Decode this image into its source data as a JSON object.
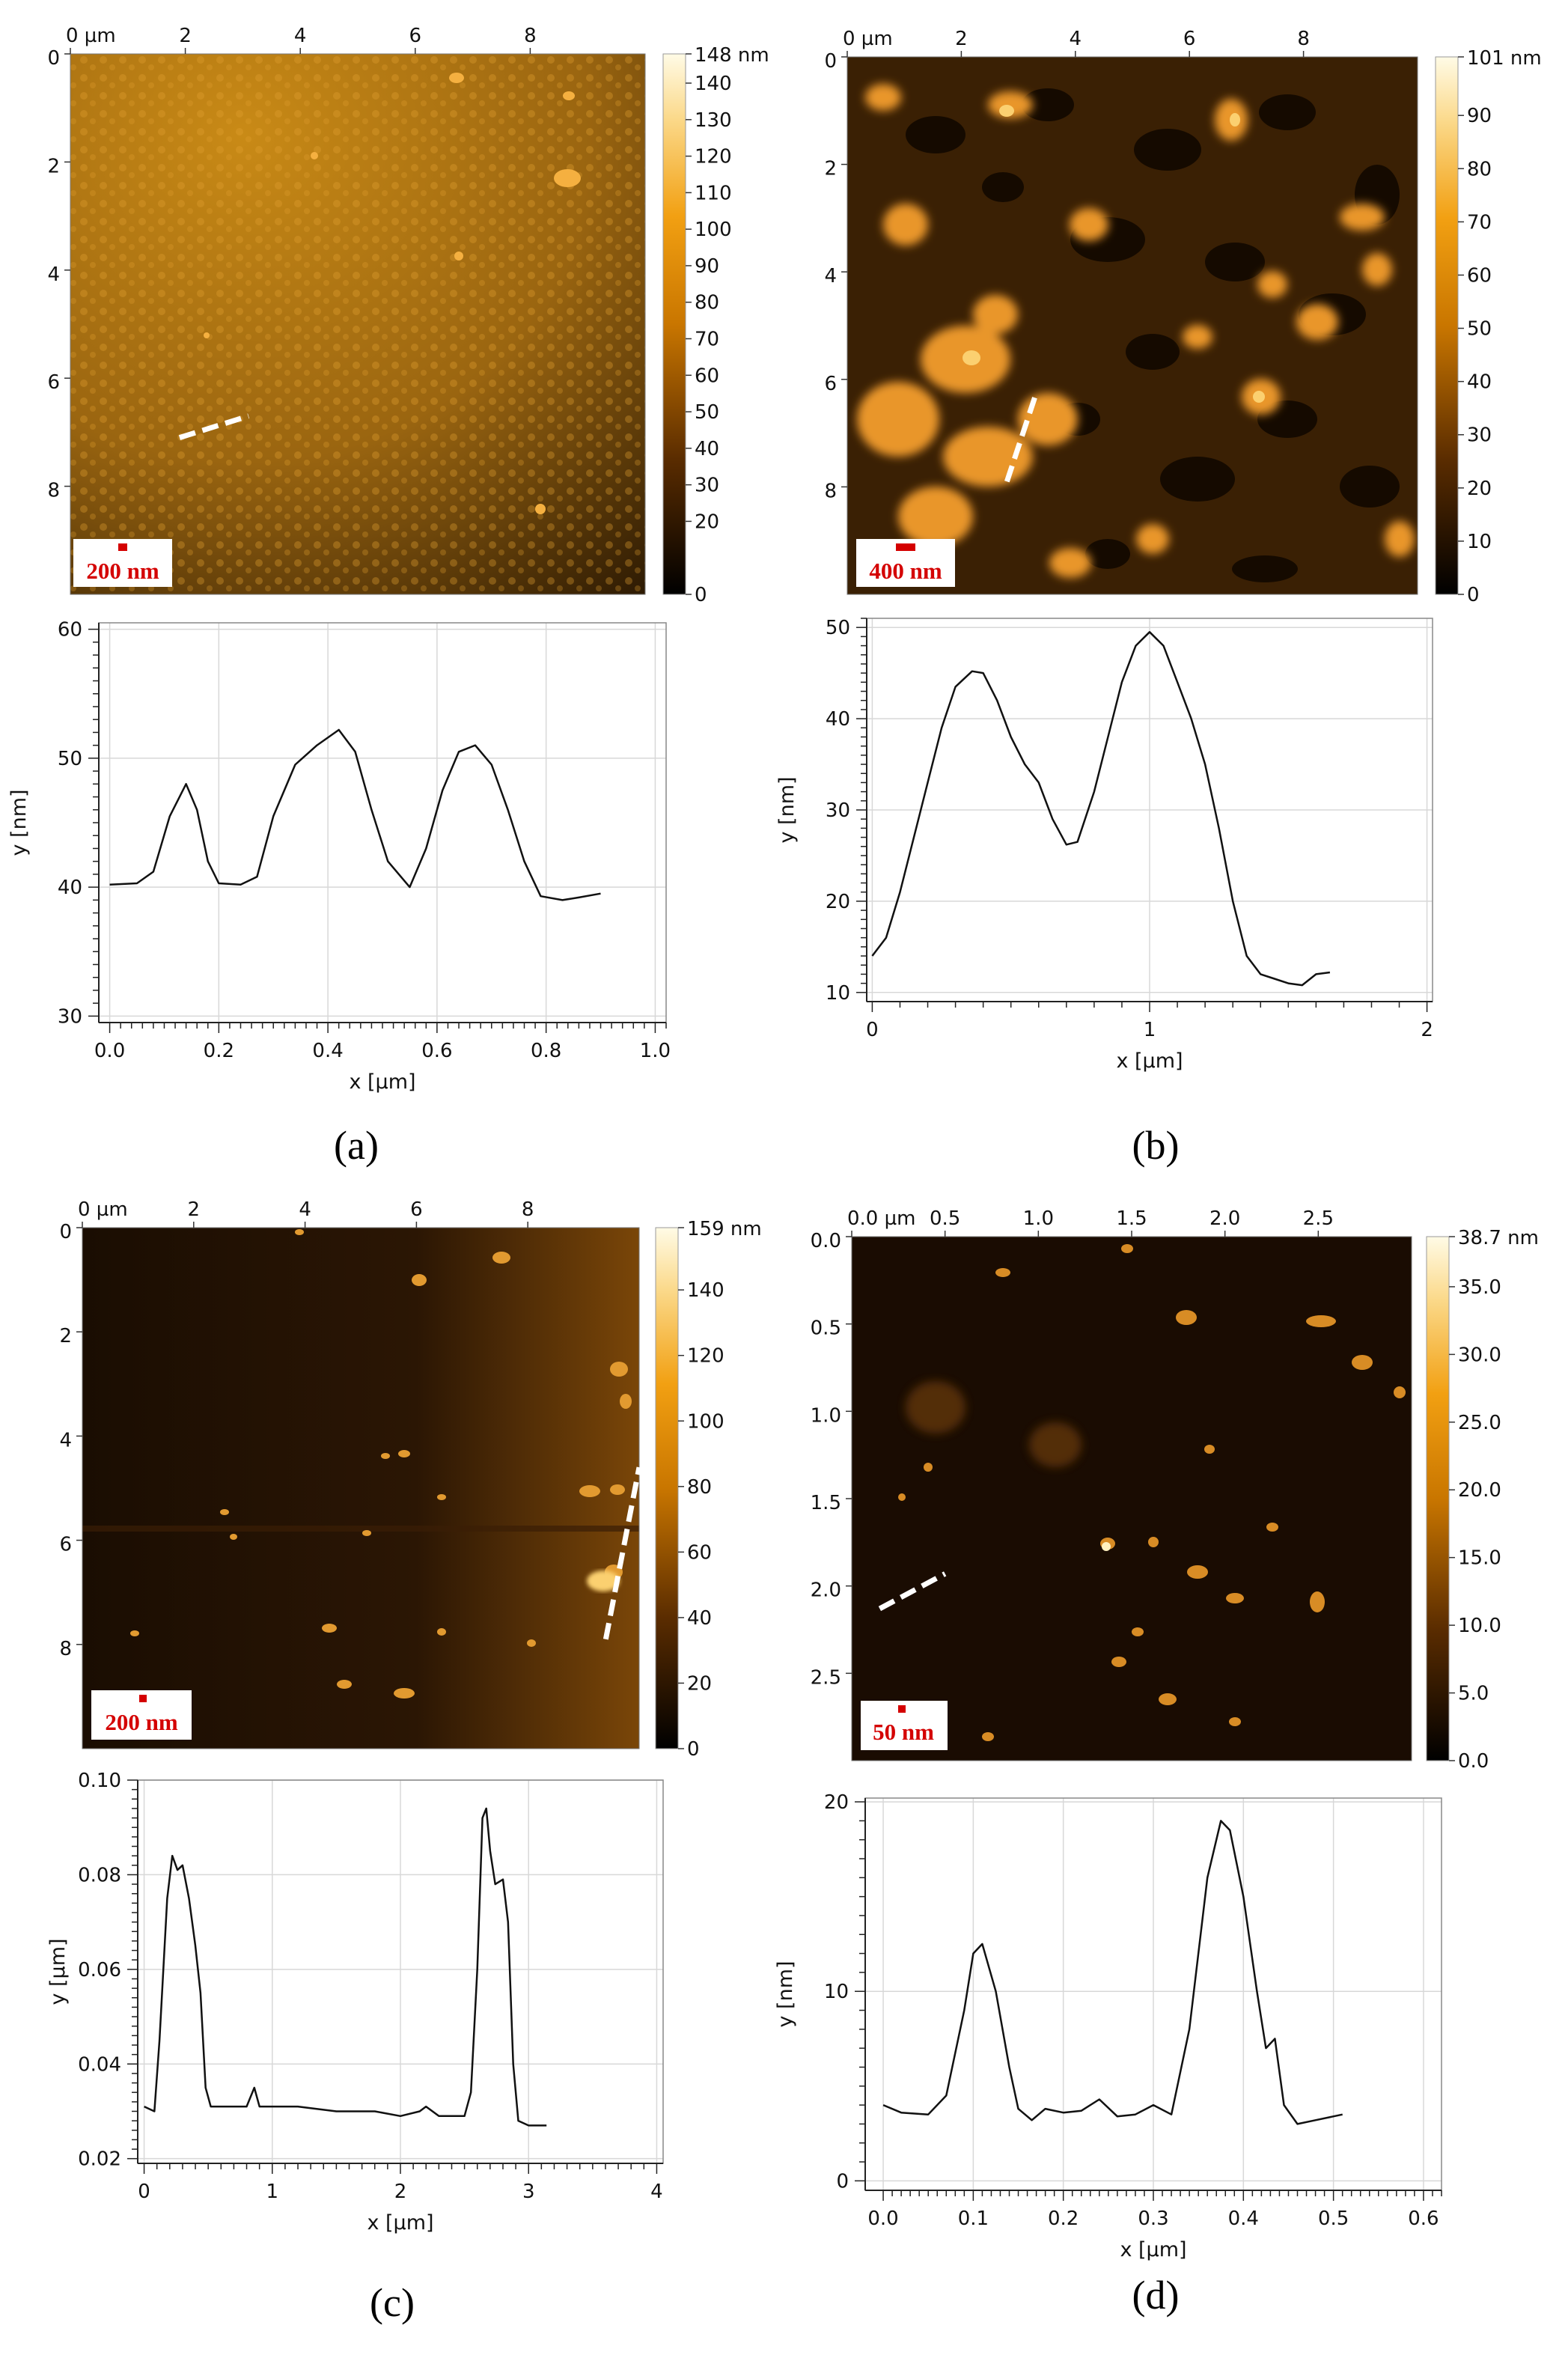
{
  "chart_data": [
    {
      "panel": "a",
      "type": "heatmap",
      "x_unit_label": "0 µm",
      "x_ticks": [
        "0 µm",
        "2",
        "4",
        "6",
        "8"
      ],
      "x_tick_values": [
        0,
        2,
        4,
        6,
        8
      ],
      "y_ticks": [
        "0",
        "2",
        "4",
        "6",
        "8"
      ],
      "y_tick_values": [
        0,
        2,
        4,
        6,
        8
      ],
      "range": [
        0,
        10
      ],
      "colorbar_max_label": "148 nm",
      "colorbar_ticks": [
        "140",
        "130",
        "120",
        "110",
        "100",
        "90",
        "80",
        "70",
        "60",
        "50",
        "40",
        "30",
        "20",
        "0"
      ],
      "colorbar_tick_values": [
        140,
        130,
        120,
        110,
        100,
        90,
        80,
        70,
        60,
        50,
        40,
        30,
        20,
        0
      ],
      "colorbar_range": [
        0,
        148
      ],
      "scale_bar": "200 nm",
      "profile_line": [
        [
          1.9,
          7.1
        ],
        [
          3.1,
          6.7
        ]
      ]
    },
    {
      "panel": "a",
      "type": "line",
      "xlabel": "x [µm]",
      "ylabel": "y [nm]",
      "xlim": [
        -0.02,
        1.02
      ],
      "ylim": [
        29.5,
        60.5
      ],
      "x_ticks": [
        "0.0",
        "0.2",
        "0.4",
        "0.6",
        "0.8",
        "1.0"
      ],
      "x_tick_values": [
        0,
        0.2,
        0.4,
        0.6,
        0.8,
        1.0
      ],
      "y_ticks": [
        "30",
        "40",
        "50",
        "60"
      ],
      "y_tick_values": [
        30,
        40,
        50,
        60
      ],
      "points": [
        [
          0,
          40.2
        ],
        [
          0.05,
          40.3
        ],
        [
          0.08,
          41.2
        ],
        [
          0.11,
          45.5
        ],
        [
          0.14,
          48
        ],
        [
          0.16,
          46
        ],
        [
          0.18,
          42
        ],
        [
          0.2,
          40.3
        ],
        [
          0.24,
          40.2
        ],
        [
          0.27,
          40.8
        ],
        [
          0.3,
          45.5
        ],
        [
          0.34,
          49.5
        ],
        [
          0.38,
          51
        ],
        [
          0.42,
          52.2
        ],
        [
          0.45,
          50.5
        ],
        [
          0.48,
          46
        ],
        [
          0.51,
          42
        ],
        [
          0.55,
          40
        ],
        [
          0.58,
          43
        ],
        [
          0.61,
          47.5
        ],
        [
          0.64,
          50.5
        ],
        [
          0.67,
          51
        ],
        [
          0.7,
          49.5
        ],
        [
          0.73,
          46
        ],
        [
          0.76,
          42
        ],
        [
          0.79,
          39.3
        ],
        [
          0.83,
          39
        ],
        [
          0.86,
          39.2
        ],
        [
          0.9,
          39.5
        ]
      ]
    },
    {
      "panel": "b",
      "type": "heatmap",
      "x_ticks": [
        "0 µm",
        "2",
        "4",
        "6",
        "8"
      ],
      "x_tick_values": [
        0,
        2,
        4,
        6,
        8
      ],
      "y_ticks": [
        "0",
        "2",
        "4",
        "6",
        "8"
      ],
      "y_tick_values": [
        0,
        2,
        4,
        6,
        8
      ],
      "range": [
        0,
        10
      ],
      "colorbar_max_label": "101 nm",
      "colorbar_ticks": [
        "90",
        "80",
        "70",
        "60",
        "50",
        "40",
        "30",
        "20",
        "10",
        "0"
      ],
      "colorbar_tick_values": [
        90,
        80,
        70,
        60,
        50,
        40,
        30,
        20,
        10,
        0
      ],
      "colorbar_range": [
        0,
        101
      ],
      "scale_bar": "400 nm",
      "profile_line": [
        [
          2.8,
          7.9
        ],
        [
          3.3,
          6.3
        ]
      ]
    },
    {
      "panel": "b",
      "type": "line",
      "xlabel": "x [µm]",
      "ylabel": "y [nm]",
      "xlim": [
        -0.02,
        2.02
      ],
      "ylim": [
        9,
        51
      ],
      "x_ticks": [
        "0",
        "1",
        "2"
      ],
      "x_tick_values": [
        0,
        1,
        2
      ],
      "y_ticks": [
        "10",
        "20",
        "30",
        "40",
        "50"
      ],
      "y_tick_values": [
        10,
        20,
        30,
        40,
        50
      ],
      "points": [
        [
          0,
          14
        ],
        [
          0.05,
          16
        ],
        [
          0.1,
          21
        ],
        [
          0.15,
          27
        ],
        [
          0.2,
          33
        ],
        [
          0.25,
          39
        ],
        [
          0.3,
          43.5
        ],
        [
          0.36,
          45.2
        ],
        [
          0.4,
          45
        ],
        [
          0.45,
          42
        ],
        [
          0.5,
          38
        ],
        [
          0.55,
          35
        ],
        [
          0.6,
          33
        ],
        [
          0.65,
          29
        ],
        [
          0.7,
          26.2
        ],
        [
          0.74,
          26.5
        ],
        [
          0.8,
          32
        ],
        [
          0.85,
          38
        ],
        [
          0.9,
          44
        ],
        [
          0.95,
          48
        ],
        [
          1.0,
          49.5
        ],
        [
          1.05,
          48
        ],
        [
          1.1,
          44
        ],
        [
          1.15,
          40
        ],
        [
          1.2,
          35
        ],
        [
          1.25,
          28
        ],
        [
          1.3,
          20
        ],
        [
          1.35,
          14
        ],
        [
          1.4,
          12
        ],
        [
          1.45,
          11.5
        ],
        [
          1.5,
          11
        ],
        [
          1.55,
          10.8
        ],
        [
          1.6,
          12
        ],
        [
          1.65,
          12.2
        ]
      ]
    },
    {
      "panel": "c",
      "type": "heatmap",
      "x_ticks": [
        "0 µm",
        "2",
        "4",
        "6",
        "8"
      ],
      "x_tick_values": [
        0,
        2,
        4,
        6,
        8
      ],
      "y_ticks": [
        "0",
        "2",
        "4",
        "6",
        "8"
      ],
      "y_tick_values": [
        0,
        2,
        4,
        6,
        8
      ],
      "range": [
        0,
        10
      ],
      "colorbar_max_label": "159 nm",
      "colorbar_ticks": [
        "140",
        "120",
        "100",
        "80",
        "60",
        "40",
        "20",
        "0"
      ],
      "colorbar_tick_values": [
        140,
        120,
        100,
        80,
        60,
        40,
        20,
        0
      ],
      "colorbar_range": [
        0,
        159
      ],
      "scale_bar": "200 nm",
      "profile_line": [
        [
          9.4,
          7.9
        ],
        [
          10.0,
          4.6
        ]
      ]
    },
    {
      "panel": "c",
      "type": "line",
      "xlabel": "x [µm]",
      "ylabel": "y [µm]",
      "xlim": [
        -0.05,
        4.05
      ],
      "ylim": [
        0.019,
        0.1
      ],
      "x_ticks": [
        "0",
        "1",
        "2",
        "3",
        "4"
      ],
      "x_tick_values": [
        0,
        1,
        2,
        3,
        4
      ],
      "y_ticks": [
        "0.02",
        "0.04",
        "0.06",
        "0.08",
        "0.10"
      ],
      "y_tick_values": [
        0.02,
        0.04,
        0.06,
        0.08,
        0.1
      ],
      "points": [
        [
          0,
          0.031
        ],
        [
          0.08,
          0.03
        ],
        [
          0.12,
          0.045
        ],
        [
          0.18,
          0.075
        ],
        [
          0.22,
          0.084
        ],
        [
          0.26,
          0.081
        ],
        [
          0.3,
          0.082
        ],
        [
          0.35,
          0.075
        ],
        [
          0.4,
          0.065
        ],
        [
          0.44,
          0.055
        ],
        [
          0.48,
          0.035
        ],
        [
          0.52,
          0.031
        ],
        [
          0.6,
          0.031
        ],
        [
          0.8,
          0.031
        ],
        [
          0.86,
          0.035
        ],
        [
          0.9,
          0.031
        ],
        [
          1.2,
          0.031
        ],
        [
          1.5,
          0.03
        ],
        [
          1.8,
          0.03
        ],
        [
          2.0,
          0.029
        ],
        [
          2.15,
          0.03
        ],
        [
          2.2,
          0.031
        ],
        [
          2.3,
          0.029
        ],
        [
          2.5,
          0.029
        ],
        [
          2.55,
          0.034
        ],
        [
          2.6,
          0.06
        ],
        [
          2.64,
          0.092
        ],
        [
          2.67,
          0.094
        ],
        [
          2.7,
          0.085
        ],
        [
          2.74,
          0.078
        ],
        [
          2.8,
          0.079
        ],
        [
          2.84,
          0.07
        ],
        [
          2.88,
          0.04
        ],
        [
          2.92,
          0.028
        ],
        [
          3.0,
          0.027
        ],
        [
          3.14,
          0.027
        ]
      ]
    },
    {
      "panel": "d",
      "type": "heatmap",
      "x_ticks": [
        "0.0 µm",
        "0.5",
        "1.0",
        "1.5",
        "2.0",
        "2.5"
      ],
      "x_tick_values": [
        0,
        0.5,
        1.0,
        1.5,
        2.0,
        2.5
      ],
      "y_ticks": [
        "0.0",
        "0.5",
        "1.0",
        "1.5",
        "2.0",
        "2.5"
      ],
      "y_tick_values": [
        0,
        0.5,
        1.0,
        1.5,
        2.0,
        2.5
      ],
      "range": [
        0,
        3.0
      ],
      "colorbar_max_label": "38.7 nm",
      "colorbar_ticks": [
        "35.0",
        "30.0",
        "25.0",
        "20.0",
        "15.0",
        "10.0",
        "5.0",
        "0.0"
      ],
      "colorbar_tick_values": [
        35,
        30,
        25,
        20,
        15,
        10,
        5,
        0
      ],
      "colorbar_range": [
        0,
        38.7
      ],
      "scale_bar": "50 nm",
      "profile_line": [
        [
          0.15,
          2.13
        ],
        [
          0.5,
          1.93
        ]
      ]
    },
    {
      "panel": "d",
      "type": "line",
      "xlabel": "x [µm]",
      "ylabel": "y [nm]",
      "xlim": [
        -0.02,
        0.62
      ],
      "ylim": [
        -0.5,
        20.2
      ],
      "x_ticks": [
        "0.0",
        "0.1",
        "0.2",
        "0.3",
        "0.4",
        "0.5",
        "0.6"
      ],
      "x_tick_values": [
        0,
        0.1,
        0.2,
        0.3,
        0.4,
        0.5,
        0.6
      ],
      "y_ticks": [
        "0",
        "10",
        "20"
      ],
      "y_tick_values": [
        0,
        10,
        20
      ],
      "points": [
        [
          0,
          4
        ],
        [
          0.02,
          3.6
        ],
        [
          0.05,
          3.5
        ],
        [
          0.07,
          4.5
        ],
        [
          0.09,
          9
        ],
        [
          0.1,
          12
        ],
        [
          0.11,
          12.5
        ],
        [
          0.125,
          10
        ],
        [
          0.14,
          6
        ],
        [
          0.15,
          3.8
        ],
        [
          0.165,
          3.2
        ],
        [
          0.18,
          3.8
        ],
        [
          0.2,
          3.6
        ],
        [
          0.22,
          3.7
        ],
        [
          0.24,
          4.3
        ],
        [
          0.26,
          3.4
        ],
        [
          0.28,
          3.5
        ],
        [
          0.3,
          4.0
        ],
        [
          0.32,
          3.5
        ],
        [
          0.34,
          8
        ],
        [
          0.36,
          16
        ],
        [
          0.375,
          19
        ],
        [
          0.385,
          18.5
        ],
        [
          0.4,
          15
        ],
        [
          0.415,
          10
        ],
        [
          0.425,
          7
        ],
        [
          0.435,
          7.5
        ],
        [
          0.445,
          4
        ],
        [
          0.46,
          3
        ],
        [
          0.48,
          3.2
        ],
        [
          0.51,
          3.5
        ]
      ]
    }
  ],
  "panel_labels": [
    "(a)",
    "(b)",
    "(c)",
    "(d)"
  ],
  "colors": {
    "line": "#111111",
    "grid": "#d8d8d8",
    "scale_text": "#d40000",
    "profile": "#ffffff"
  }
}
